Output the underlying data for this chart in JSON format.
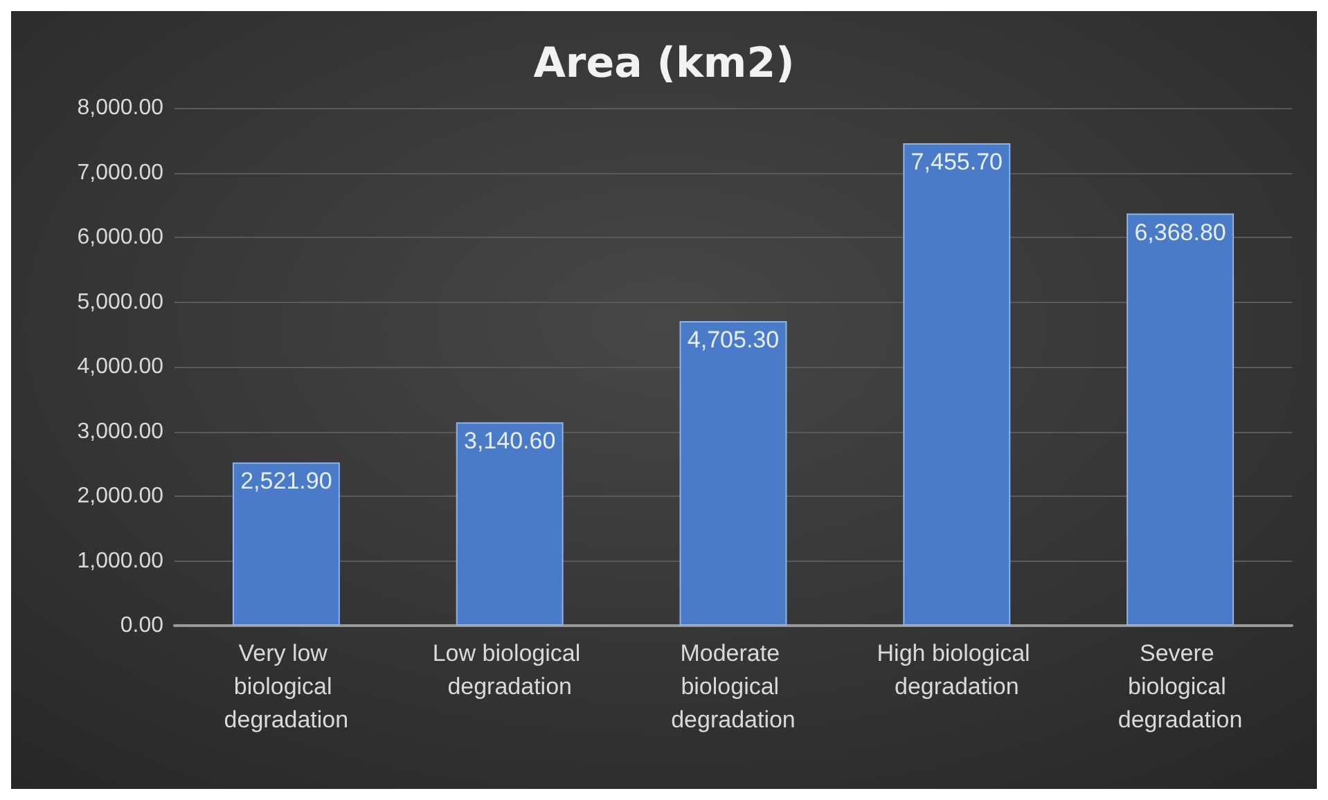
{
  "chart_data": {
    "type": "bar",
    "title": "Area (km2)",
    "categories": [
      "Very low biological degradation",
      "Low biological degradation",
      "Moderate biological degradation",
      "High biological degradation",
      "Severe biological degradation"
    ],
    "values": [
      2521.9,
      3140.6,
      4705.3,
      7455.7,
      6368.8
    ],
    "value_labels": [
      "2,521.90",
      "3,140.60",
      "4,705.30",
      "7,455.70",
      "6,368.80"
    ],
    "color": "#4a7bc8",
    "ylim": [
      0,
      8000
    ],
    "yticks": [
      {
        "value": 0,
        "label": "0.00"
      },
      {
        "value": 1000,
        "label": "1,000.00"
      },
      {
        "value": 2000,
        "label": "2,000.00"
      },
      {
        "value": 3000,
        "label": "3,000.00"
      },
      {
        "value": 4000,
        "label": "4,000.00"
      },
      {
        "value": 5000,
        "label": "5,000.00"
      },
      {
        "value": 6000,
        "label": "6,000.00"
      },
      {
        "value": 7000,
        "label": "7,000.00"
      },
      {
        "value": 8000,
        "label": "8,000.00"
      }
    ],
    "grid": true
  }
}
